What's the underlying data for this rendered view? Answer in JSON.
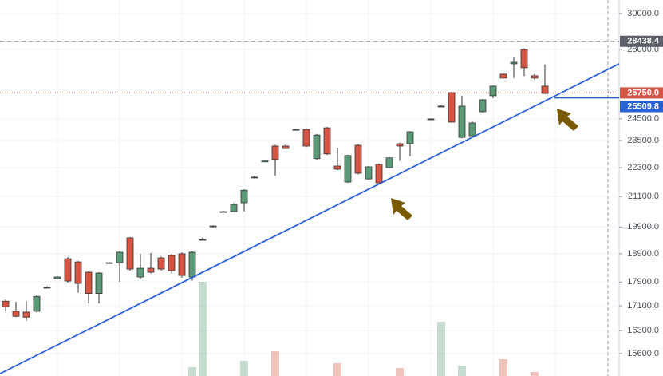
{
  "chart_data": {
    "type": "candlestick",
    "scale": "log",
    "grid": true,
    "up_color": "#5b9a76",
    "down_color": "#d75442",
    "trend_color": "#2962d4",
    "ylim": [
      14940,
      30790
    ],
    "yticks": [
      {
        "value": 30000,
        "label": "30000.0"
      },
      {
        "value": 28000,
        "label": "28000.0"
      },
      {
        "value": 24500,
        "label": "24500.0"
      },
      {
        "value": 23500,
        "label": "23500.0"
      },
      {
        "value": 22300,
        "label": "22300.0"
      },
      {
        "value": 21100,
        "label": "21100.0"
      },
      {
        "value": 19900,
        "label": "19900.0"
      },
      {
        "value": 18900,
        "label": "18900.0"
      },
      {
        "value": 17900,
        "label": "17900.0"
      },
      {
        "value": 17100,
        "label": "17100.0"
      },
      {
        "value": 16300,
        "label": "16300.0"
      },
      {
        "value": 15600,
        "label": "15600.0"
      }
    ],
    "ohlc": [
      [
        17253,
        17306,
        16922,
        17067
      ],
      [
        16922,
        17230,
        16732,
        16758
      ],
      [
        16896,
        17253,
        16607,
        16732
      ],
      [
        16922,
        17460,
        16890,
        17413
      ],
      [
        17690,
        17760,
        17680,
        17718
      ],
      [
        18016,
        18100,
        18000,
        18071
      ],
      [
        18721,
        18780,
        17880,
        17933
      ],
      [
        18605,
        18640,
        17538,
        17851
      ],
      [
        18239,
        18280,
        17174,
        17511
      ],
      [
        17511,
        18240,
        17174,
        18211
      ],
      [
        18560,
        18600,
        18540,
        18577
      ],
      [
        18577,
        18990,
        17906,
        18954
      ],
      [
        19485,
        19520,
        18300,
        18351
      ],
      [
        18071,
        18900,
        18000,
        18379
      ],
      [
        18379,
        18925,
        18200,
        18239
      ],
      [
        18750,
        18800,
        18300,
        18351
      ],
      [
        18838,
        18900,
        18200,
        18295
      ],
      [
        18896,
        18950,
        18050,
        18127
      ],
      [
        18071,
        18990,
        17950,
        18954
      ],
      [
        19400,
        19500,
        19380,
        19425
      ],
      [
        19910,
        19960,
        19890,
        19936
      ],
      [
        20470,
        20520,
        20450,
        20497
      ],
      [
        20497,
        20830,
        20480,
        20783
      ],
      [
        20847,
        21400,
        20500,
        21357
      ],
      [
        21870,
        21960,
        21850,
        21900
      ],
      [
        22553,
        22640,
        22540,
        22622
      ],
      [
        23249,
        23300,
        21965,
        22656
      ],
      [
        23249,
        23300,
        23120,
        23141
      ],
      [
        23980,
        24030,
        23960,
        24005
      ],
      [
        24005,
        24050,
        23200,
        23249
      ],
      [
        22691,
        23800,
        22650,
        23749
      ],
      [
        24079,
        24120,
        22850,
        22899
      ],
      [
        22373,
        23176,
        22200,
        22236
      ],
      [
        21693,
        22860,
        21660,
        22829
      ],
      [
        23282,
        23330,
        22020,
        22065
      ],
      [
        21826,
        22373,
        21800,
        22338
      ],
      [
        22441,
        22480,
        21620,
        21660
      ],
      [
        22304,
        22760,
        22280,
        22726
      ],
      [
        23354,
        23400,
        22600,
        23249
      ],
      [
        23354,
        23930,
        22800,
        23897
      ],
      null,
      [
        24470,
        24520,
        24460,
        24494
      ],
      [
        25080,
        25150,
        25070,
        25104
      ],
      [
        25767,
        25800,
        24320,
        24345
      ],
      [
        23642,
        25613,
        23600,
        25104
      ],
      [
        23713,
        24370,
        23680,
        24308
      ],
      [
        24837,
        25450,
        24800,
        25415
      ],
      [
        25613,
        26120,
        25500,
        26089
      ],
      [
        26698,
        26720,
        26480,
        26495
      ],
      [
        27235,
        27560,
        26500,
        27316
      ],
      [
        27996,
        28050,
        26600,
        27027
      ],
      [
        26616,
        26720,
        26400,
        26495
      ],
      [
        26089,
        27200,
        25700,
        25727
      ]
    ],
    "volume": [
      null,
      null,
      null,
      null,
      null,
      null,
      null,
      null,
      null,
      null,
      null,
      null,
      null,
      null,
      null,
      null,
      null,
      null,
      11,
      118,
      null,
      null,
      null,
      19,
      null,
      null,
      31,
      null,
      null,
      null,
      null,
      null,
      16,
      null,
      null,
      null,
      null,
      null,
      10,
      null,
      null,
      null,
      68,
      null,
      13,
      null,
      null,
      null,
      21,
      null,
      null,
      5,
      null
    ],
    "price_lines": [
      {
        "value": 28438.4,
        "label": "28438.4",
        "color": "#5d606b"
      },
      {
        "value": 25750.0,
        "label": "25750.0",
        "color": "#d75442"
      },
      {
        "value": 25509.8,
        "label": "25509.8",
        "color": "#2962d4"
      }
    ],
    "trendline": [
      15006,
      27235
    ]
  }
}
